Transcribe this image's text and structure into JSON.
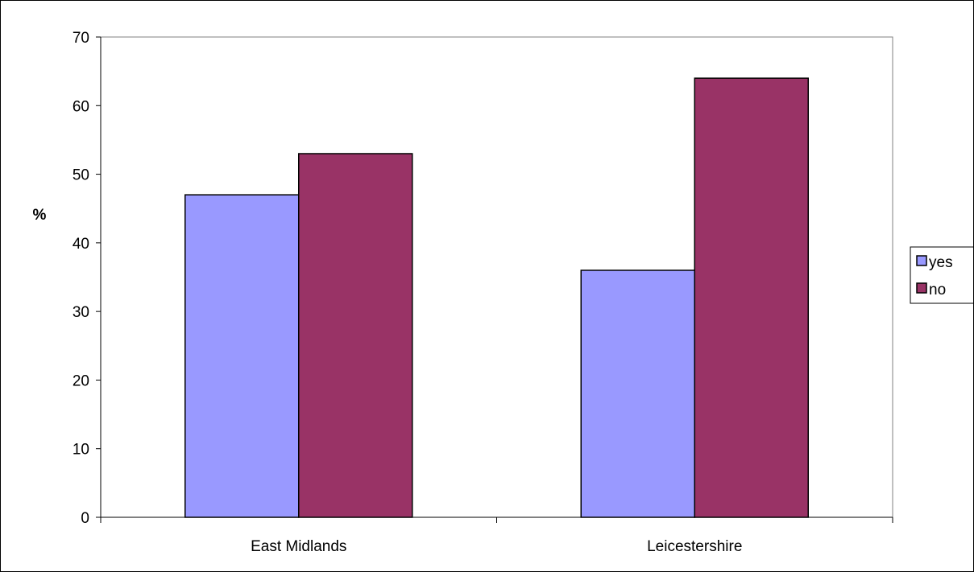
{
  "chart_data": {
    "type": "bar",
    "title": "",
    "xlabel": "",
    "ylabel": "%",
    "ylim": [
      0,
      70
    ],
    "yticks": [
      0,
      10,
      20,
      30,
      40,
      50,
      60,
      70
    ],
    "categories": [
      "East Midlands",
      "Leicestershire"
    ],
    "series": [
      {
        "name": "yes",
        "values": [
          47,
          36
        ],
        "color": "#9999FF"
      },
      {
        "name": "no",
        "values": [
          53,
          64
        ],
        "color": "#993366"
      }
    ],
    "grid": false,
    "legend": "right"
  }
}
